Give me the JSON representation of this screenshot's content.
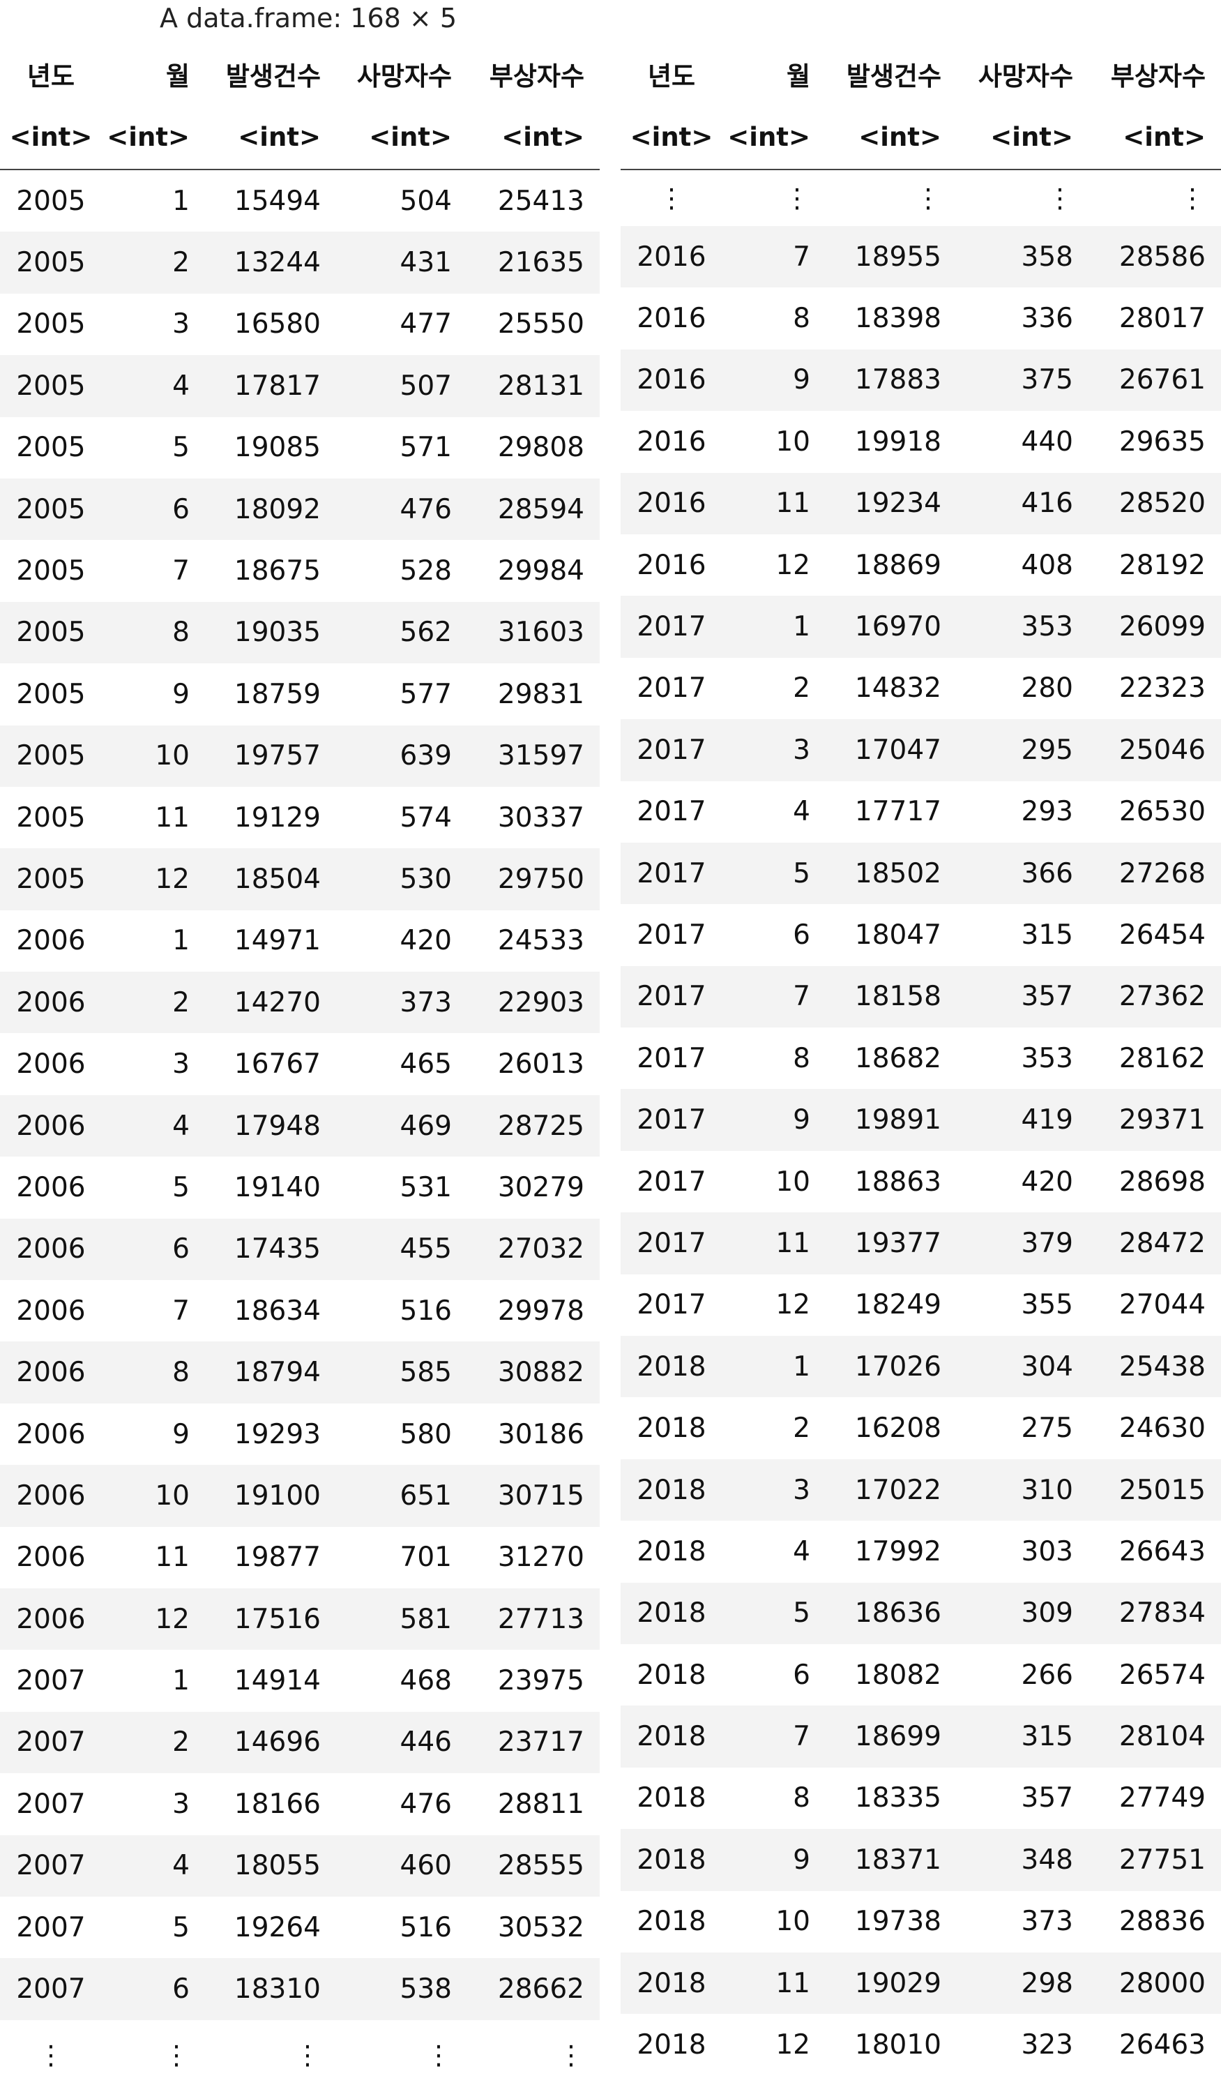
{
  "caption": "A data.frame: 168 × 5",
  "columns": [
    "년도",
    "월",
    "발생건수",
    "사망자수",
    "부상자수"
  ],
  "types": [
    "<int>",
    "<int>",
    "<int>",
    "<int>",
    "<int>"
  ],
  "ellipsis": "⋮",
  "left_rows": [
    [
      "2005",
      "1",
      "15494",
      "504",
      "25413"
    ],
    [
      "2005",
      "2",
      "13244",
      "431",
      "21635"
    ],
    [
      "2005",
      "3",
      "16580",
      "477",
      "25550"
    ],
    [
      "2005",
      "4",
      "17817",
      "507",
      "28131"
    ],
    [
      "2005",
      "5",
      "19085",
      "571",
      "29808"
    ],
    [
      "2005",
      "6",
      "18092",
      "476",
      "28594"
    ],
    [
      "2005",
      "7",
      "18675",
      "528",
      "29984"
    ],
    [
      "2005",
      "8",
      "19035",
      "562",
      "31603"
    ],
    [
      "2005",
      "9",
      "18759",
      "577",
      "29831"
    ],
    [
      "2005",
      "10",
      "19757",
      "639",
      "31597"
    ],
    [
      "2005",
      "11",
      "19129",
      "574",
      "30337"
    ],
    [
      "2005",
      "12",
      "18504",
      "530",
      "29750"
    ],
    [
      "2006",
      "1",
      "14971",
      "420",
      "24533"
    ],
    [
      "2006",
      "2",
      "14270",
      "373",
      "22903"
    ],
    [
      "2006",
      "3",
      "16767",
      "465",
      "26013"
    ],
    [
      "2006",
      "4",
      "17948",
      "469",
      "28725"
    ],
    [
      "2006",
      "5",
      "19140",
      "531",
      "30279"
    ],
    [
      "2006",
      "6",
      "17435",
      "455",
      "27032"
    ],
    [
      "2006",
      "7",
      "18634",
      "516",
      "29978"
    ],
    [
      "2006",
      "8",
      "18794",
      "585",
      "30882"
    ],
    [
      "2006",
      "9",
      "19293",
      "580",
      "30186"
    ],
    [
      "2006",
      "10",
      "19100",
      "651",
      "30715"
    ],
    [
      "2006",
      "11",
      "19877",
      "701",
      "31270"
    ],
    [
      "2006",
      "12",
      "17516",
      "581",
      "27713"
    ],
    [
      "2007",
      "1",
      "14914",
      "468",
      "23975"
    ],
    [
      "2007",
      "2",
      "14696",
      "446",
      "23717"
    ],
    [
      "2007",
      "3",
      "18166",
      "476",
      "28811"
    ],
    [
      "2007",
      "4",
      "18055",
      "460",
      "28555"
    ],
    [
      "2007",
      "5",
      "19264",
      "516",
      "30532"
    ],
    [
      "2007",
      "6",
      "18310",
      "538",
      "28662"
    ]
  ],
  "right_rows": [
    [
      "2016",
      "7",
      "18955",
      "358",
      "28586"
    ],
    [
      "2016",
      "8",
      "18398",
      "336",
      "28017"
    ],
    [
      "2016",
      "9",
      "17883",
      "375",
      "26761"
    ],
    [
      "2016",
      "10",
      "19918",
      "440",
      "29635"
    ],
    [
      "2016",
      "11",
      "19234",
      "416",
      "28520"
    ],
    [
      "2016",
      "12",
      "18869",
      "408",
      "28192"
    ],
    [
      "2017",
      "1",
      "16970",
      "353",
      "26099"
    ],
    [
      "2017",
      "2",
      "14832",
      "280",
      "22323"
    ],
    [
      "2017",
      "3",
      "17047",
      "295",
      "25046"
    ],
    [
      "2017",
      "4",
      "17717",
      "293",
      "26530"
    ],
    [
      "2017",
      "5",
      "18502",
      "366",
      "27268"
    ],
    [
      "2017",
      "6",
      "18047",
      "315",
      "26454"
    ],
    [
      "2017",
      "7",
      "18158",
      "357",
      "27362"
    ],
    [
      "2017",
      "8",
      "18682",
      "353",
      "28162"
    ],
    [
      "2017",
      "9",
      "19891",
      "419",
      "29371"
    ],
    [
      "2017",
      "10",
      "18863",
      "420",
      "28698"
    ],
    [
      "2017",
      "11",
      "19377",
      "379",
      "28472"
    ],
    [
      "2017",
      "12",
      "18249",
      "355",
      "27044"
    ],
    [
      "2018",
      "1",
      "17026",
      "304",
      "25438"
    ],
    [
      "2018",
      "2",
      "16208",
      "275",
      "24630"
    ],
    [
      "2018",
      "3",
      "17022",
      "310",
      "25015"
    ],
    [
      "2018",
      "4",
      "17992",
      "303",
      "26643"
    ],
    [
      "2018",
      "5",
      "18636",
      "309",
      "27834"
    ],
    [
      "2018",
      "6",
      "18082",
      "266",
      "26574"
    ],
    [
      "2018",
      "7",
      "18699",
      "315",
      "28104"
    ],
    [
      "2018",
      "8",
      "18335",
      "357",
      "27749"
    ],
    [
      "2018",
      "9",
      "18371",
      "348",
      "27751"
    ],
    [
      "2018",
      "10",
      "19738",
      "373",
      "28836"
    ],
    [
      "2018",
      "11",
      "19029",
      "298",
      "28000"
    ],
    [
      "2018",
      "12",
      "18010",
      "323",
      "26463"
    ]
  ]
}
